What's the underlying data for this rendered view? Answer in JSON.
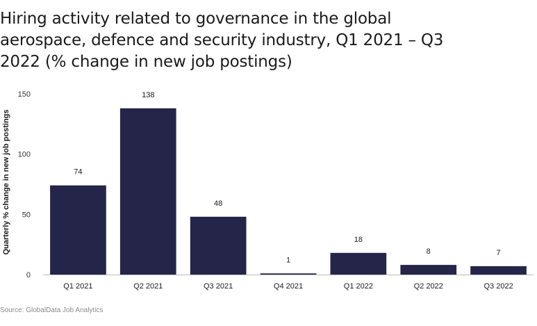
{
  "title": "Hiring activity related to governance in the global aerospace, defence and security industry, Q1 2021 – Q3 2022 (% change in new job postings)",
  "source": "Source: GlobalData Job Analytics",
  "chart_data": {
    "type": "bar",
    "title": "Hiring activity related to governance in the global aerospace, defence and security industry, Q1 2021 – Q3 2022 (% change in new job postings)",
    "ylabel": "Quarterly % change in new job postings",
    "xlabel": "",
    "categories": [
      "Q1 2021",
      "Q2 2021",
      "Q3 2021",
      "Q4 2021",
      "Q1 2022",
      "Q2 2022",
      "Q3 2022"
    ],
    "values": [
      74,
      138,
      48,
      1,
      18,
      8,
      7
    ],
    "ylim": [
      0,
      150
    ],
    "yticks": [
      0,
      50,
      100,
      150
    ],
    "bar_color": "#25254a",
    "grid": false,
    "data_labels": true
  }
}
